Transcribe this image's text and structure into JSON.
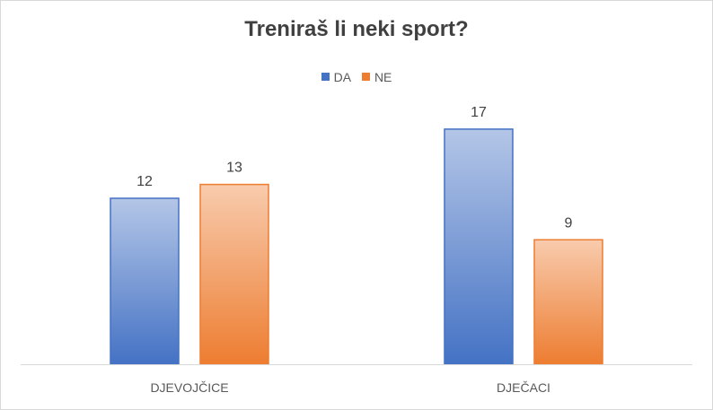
{
  "chart_data": {
    "type": "bar",
    "title": "Treniraš li neki sport?",
    "categories": [
      "DJEVOJČICE",
      "DJEČACI"
    ],
    "series": [
      {
        "name": "DA",
        "values": [
          12,
          17
        ],
        "color": "#4472c4",
        "color_light": "#b4c6e7"
      },
      {
        "name": "NE",
        "values": [
          13,
          9
        ],
        "color": "#ed7d31",
        "color_light": "#f8cbad"
      }
    ],
    "ylim": [
      0,
      20
    ],
    "grid": false,
    "legend_position": "top",
    "data_labels": true
  }
}
